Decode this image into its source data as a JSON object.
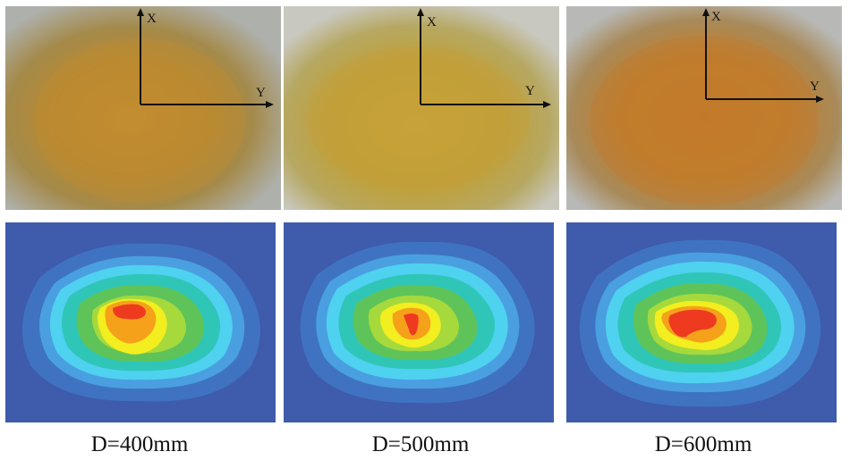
{
  "panels": [
    {
      "caption": "D=400mm",
      "axis_x_label": "X",
      "axis_y_label": "Y"
    },
    {
      "caption": "D=500mm",
      "axis_x_label": "X",
      "axis_y_label": "Y"
    },
    {
      "caption": "D=600mm",
      "axis_x_label": "X",
      "axis_y_label": "Y"
    }
  ],
  "colors": {
    "heatmap_background": "#3f5bab",
    "heatmap_levels": [
      "#3f73c2",
      "#4a9fe0",
      "#4fd1f0",
      "#2fc6b8",
      "#5ec45a",
      "#a6d93c",
      "#f2ee1f",
      "#f6a11a",
      "#ee3b20"
    ],
    "photo_spot": "#c08a2a",
    "photo_background": "#b8b8b0"
  }
}
